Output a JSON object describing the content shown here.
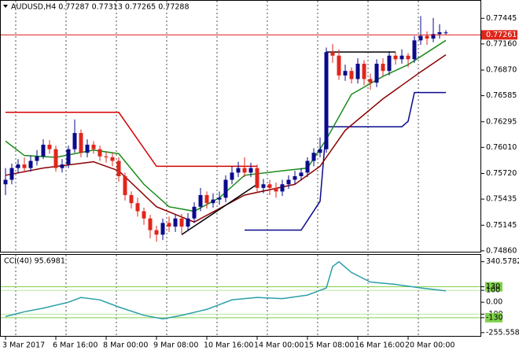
{
  "chart_data": {
    "type": "candlestick",
    "title": "AUDUSD,H4 0.77287 0.77313 0.77265 0.77288",
    "ylim": [
      0.7485,
      0.7764
    ],
    "yticks": [
      0.77445,
      {
        "value": 0.7716,
        "label": "0.77160"
      },
      {
        "value": 0.7687,
        "label": "0.76870"
      },
      0.76585,
      0.76295,
      {
        "value": 0.7601,
        "label": "0.76010"
      },
      {
        "value": 0.7572,
        "label": "0.75720"
      },
      0.75435,
      0.75145,
      {
        "value": 0.7486,
        "label": "0.74860"
      }
    ],
    "price_line": 0.77261,
    "up_color": "#0a0a8c",
    "down_color": "#e0261c",
    "ohlc": [
      [
        0.756,
        0.7578,
        0.7548,
        0.7565
      ],
      [
        0.7565,
        0.7583,
        0.756,
        0.7578
      ],
      [
        0.7578,
        0.7588,
        0.7572,
        0.7582
      ],
      [
        0.7582,
        0.759,
        0.7573,
        0.7578
      ],
      [
        0.7578,
        0.7592,
        0.7574,
        0.7586
      ],
      [
        0.7586,
        0.7598,
        0.7581,
        0.7591
      ],
      [
        0.7591,
        0.761,
        0.7588,
        0.7604
      ],
      [
        0.7604,
        0.7609,
        0.7594,
        0.7599
      ],
      [
        0.7599,
        0.7603,
        0.7574,
        0.7578
      ],
      [
        0.7578,
        0.7588,
        0.7573,
        0.7582
      ],
      [
        0.7582,
        0.7603,
        0.7578,
        0.7599
      ],
      [
        0.7599,
        0.7632,
        0.7595,
        0.7617
      ],
      [
        0.7617,
        0.7621,
        0.759,
        0.7595
      ],
      [
        0.7595,
        0.761,
        0.759,
        0.7604
      ],
      [
        0.7604,
        0.7608,
        0.7594,
        0.7599
      ],
      [
        0.7599,
        0.7603,
        0.7586,
        0.7591
      ],
      [
        0.7591,
        0.7596,
        0.7584,
        0.759
      ],
      [
        0.759,
        0.7595,
        0.758,
        0.7586
      ],
      [
        0.7586,
        0.759,
        0.7563,
        0.7569
      ],
      [
        0.7569,
        0.7573,
        0.7542,
        0.7548
      ],
      [
        0.7548,
        0.7552,
        0.7533,
        0.7539
      ],
      [
        0.7539,
        0.7545,
        0.7524,
        0.753
      ],
      [
        0.753,
        0.7534,
        0.7515,
        0.7522
      ],
      [
        0.7522,
        0.7526,
        0.75,
        0.7509
      ],
      [
        0.7509,
        0.7514,
        0.7496,
        0.7504
      ],
      [
        0.7504,
        0.7522,
        0.7498,
        0.7517
      ],
      [
        0.7517,
        0.7524,
        0.7507,
        0.7513
      ],
      [
        0.7513,
        0.7527,
        0.7507,
        0.7522
      ],
      [
        0.7522,
        0.7527,
        0.7505,
        0.7513
      ],
      [
        0.7513,
        0.7528,
        0.7508,
        0.7522
      ],
      [
        0.7522,
        0.754,
        0.7517,
        0.7535
      ],
      [
        0.7535,
        0.7556,
        0.753,
        0.7548
      ],
      [
        0.7548,
        0.7552,
        0.7533,
        0.7539
      ],
      [
        0.7539,
        0.755,
        0.7534,
        0.7543
      ],
      [
        0.7543,
        0.7552,
        0.7537,
        0.7545
      ],
      [
        0.7545,
        0.757,
        0.754,
        0.7565
      ],
      [
        0.7565,
        0.758,
        0.756,
        0.7573
      ],
      [
        0.7573,
        0.7585,
        0.7568,
        0.7578
      ],
      [
        0.7578,
        0.759,
        0.7568,
        0.7573
      ],
      [
        0.7573,
        0.7584,
        0.7568,
        0.7578
      ],
      [
        0.7578,
        0.7582,
        0.755,
        0.7556
      ],
      [
        0.7556,
        0.7566,
        0.755,
        0.756
      ],
      [
        0.756,
        0.7565,
        0.7548,
        0.7556
      ],
      [
        0.7556,
        0.7562,
        0.7545,
        0.7552
      ],
      [
        0.7552,
        0.7565,
        0.7547,
        0.756
      ],
      [
        0.756,
        0.757,
        0.7555,
        0.7565
      ],
      [
        0.7565,
        0.7575,
        0.756,
        0.7569
      ],
      [
        0.7569,
        0.7578,
        0.7564,
        0.7573
      ],
      [
        0.7573,
        0.759,
        0.7568,
        0.7586
      ],
      [
        0.7586,
        0.76,
        0.758,
        0.7595
      ],
      [
        0.7595,
        0.7612,
        0.759,
        0.7599
      ],
      [
        0.7599,
        0.7712,
        0.7595,
        0.7707
      ],
      [
        0.7707,
        0.7716,
        0.7695,
        0.7703
      ],
      [
        0.7703,
        0.771,
        0.7676,
        0.7681
      ],
      [
        0.7681,
        0.7693,
        0.7675,
        0.7686
      ],
      [
        0.7686,
        0.769,
        0.7672,
        0.7677
      ],
      [
        0.7677,
        0.77,
        0.7672,
        0.7694
      ],
      [
        0.7694,
        0.7698,
        0.767,
        0.7677
      ],
      [
        0.7677,
        0.7683,
        0.7665,
        0.7673
      ],
      [
        0.7673,
        0.7699,
        0.7668,
        0.7694
      ],
      [
        0.7694,
        0.77,
        0.768,
        0.7686
      ],
      [
        0.7686,
        0.7708,
        0.7681,
        0.7703
      ],
      [
        0.7703,
        0.7707,
        0.7693,
        0.7699
      ],
      [
        0.7699,
        0.771,
        0.7694,
        0.7703
      ],
      [
        0.7703,
        0.7706,
        0.769,
        0.7699
      ],
      [
        0.7699,
        0.7725,
        0.7695,
        0.772
      ],
      [
        0.772,
        0.7747,
        0.7715,
        0.7725
      ],
      [
        0.7725,
        0.773,
        0.7715,
        0.7722
      ],
      [
        0.7722,
        0.7745,
        0.7718,
        0.7727
      ],
      [
        0.7727,
        0.7738,
        0.7722,
        0.7729
      ],
      [
        0.77287,
        0.77313,
        0.77265,
        0.77288
      ]
    ],
    "categories": [
      "3 Mar 2017",
      "6 Mar 16:00",
      "8 Mar 00:00",
      "9 Mar 08:00",
      "10 Mar 16:00",
      "14 Mar 00:00",
      "15 Mar 08:00",
      "16 Mar 16:00",
      "20 Mar 00:00"
    ],
    "series": [
      {
        "color": "#d40000",
        "x": [
          0,
          18,
          24,
          40
        ],
        "values": [
          0.764,
          0.764,
          0.758,
          0.758
        ]
      },
      {
        "color": "#0a0a8c",
        "x": [
          38,
          47,
          50,
          51,
          63,
          64,
          65,
          70
        ],
        "values": [
          0.7509,
          0.7509,
          0.7541,
          0.7624,
          0.7624,
          0.763,
          0.7662,
          0.7662
        ]
      },
      {
        "color": "#1a8c1a",
        "x": [
          0,
          3,
          8,
          14,
          18,
          22,
          26,
          30,
          34,
          38,
          44,
          48,
          51,
          55,
          60,
          64,
          70
        ],
        "values": [
          0.7608,
          0.7592,
          0.759,
          0.7598,
          0.7594,
          0.756,
          0.7535,
          0.753,
          0.7545,
          0.757,
          0.7575,
          0.7578,
          0.761,
          0.766,
          0.768,
          0.7693,
          0.772
        ]
      },
      {
        "color": "#8b0000",
        "x": [
          0,
          6,
          14,
          18,
          24,
          30,
          38,
          46,
          50,
          54,
          60,
          66,
          70
        ],
        "values": [
          0.757,
          0.7578,
          0.7585,
          0.7575,
          0.7535,
          0.7518,
          0.7548,
          0.756,
          0.758,
          0.762,
          0.7655,
          0.7685,
          0.7704
        ]
      },
      {
        "color": "#000000",
        "x": [
          28,
          40
        ],
        "values": [
          0.7504,
          0.756
        ]
      },
      {
        "color": "#000000",
        "x": [
          51,
          62
        ],
        "values": [
          0.7707,
          0.7707
        ]
      }
    ],
    "cci": {
      "title": "CCI(40) 95.6981",
      "ylim": [
        -283,
        398
      ],
      "yticks": [
        340.5782,
        130,
        100,
        {
          "value": 0,
          "label": "0.00"
        },
        -100,
        -130,
        -255.5584
      ],
      "levels": [
        130,
        100,
        -100,
        -130
      ],
      "color": "#2a9fa8",
      "x": [
        0,
        3,
        6,
        10,
        12,
        15,
        18,
        22,
        25,
        28,
        32,
        36,
        40,
        44,
        48,
        51,
        52,
        53,
        55,
        58,
        62,
        66,
        70
      ],
      "values": [
        -120,
        -80,
        -50,
        0,
        40,
        20,
        -40,
        -110,
        -140,
        -110,
        -60,
        20,
        40,
        30,
        60,
        120,
        300,
        340,
        250,
        170,
        150,
        120,
        95.6981
      ]
    }
  }
}
